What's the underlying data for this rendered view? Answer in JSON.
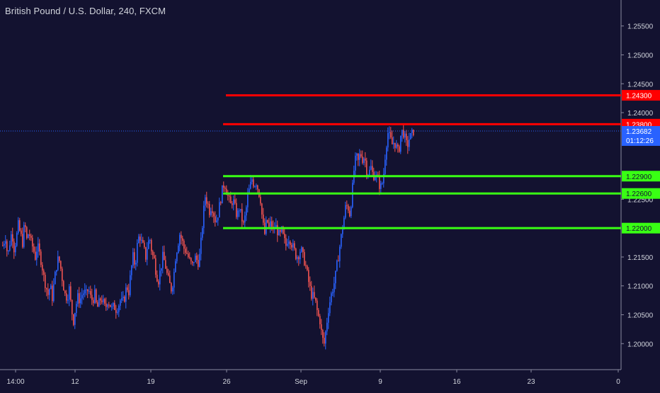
{
  "chart_data": {
    "type": "candlestick",
    "title": "British Pound / U.S. Dollar, 240, FXCM",
    "ylim": [
      1.1955,
      1.2595
    ],
    "y_ticks": [
      "1.25500",
      "1.25000",
      "1.24500",
      "1.24000",
      "1.22500",
      "1.21500",
      "1.21000",
      "1.20500",
      "1.20000"
    ],
    "x_ticks": [
      "14:00",
      "12",
      "19",
      "26",
      "Sep",
      "9",
      "16",
      "23",
      "0"
    ],
    "current_price": {
      "label": "1.23682",
      "value": 1.23682,
      "countdown": "01:12:26"
    },
    "horizontal_levels": [
      {
        "label": "1.24300",
        "value": 1.243,
        "color": "#ff0000",
        "role": "resistance"
      },
      {
        "label": "1.23800",
        "value": 1.238,
        "color": "#ff0000",
        "role": "resistance"
      },
      {
        "label": "1.22900",
        "value": 1.229,
        "color": "#39ff14",
        "role": "support"
      },
      {
        "label": "1.22600",
        "value": 1.226,
        "color": "#39ff14",
        "role": "support"
      },
      {
        "label": "1.22000",
        "value": 1.22,
        "color": "#39ff14",
        "role": "support"
      }
    ],
    "colors": {
      "background": "#131230",
      "up": "#2962ff",
      "down": "#ef5350",
      "axis_text": "#d1d4dc",
      "price_label": "#2962ff"
    },
    "close_path": [
      [
        0,
        1.217
      ],
      [
        4,
        1.2185
      ],
      [
        7,
        1.215
      ],
      [
        10,
        1.2175
      ],
      [
        13,
        1.2195
      ],
      [
        16,
        1.2165
      ],
      [
        19,
        1.218
      ],
      [
        22,
        1.2205
      ],
      [
        25,
        1.219
      ],
      [
        28,
        1.2175
      ],
      [
        31,
        1.221
      ],
      [
        34,
        1.218
      ],
      [
        37,
        1.2195
      ],
      [
        40,
        1.2175
      ],
      [
        43,
        1.2165
      ],
      [
        46,
        1.215
      ],
      [
        49,
        1.217
      ],
      [
        52,
        1.2155
      ],
      [
        55,
        1.214
      ],
      [
        58,
        1.2115
      ],
      [
        61,
        1.21
      ],
      [
        64,
        1.2085
      ],
      [
        67,
        1.21
      ],
      [
        70,
        1.208
      ],
      [
        73,
        1.211
      ],
      [
        76,
        1.2135
      ],
      [
        79,
        1.215
      ],
      [
        82,
        1.213
      ],
      [
        85,
        1.2105
      ],
      [
        88,
        1.2085
      ],
      [
        91,
        1.208
      ],
      [
        94,
        1.2095
      ],
      [
        97,
        1.206
      ],
      [
        100,
        1.204
      ],
      [
        103,
        1.2065
      ],
      [
        106,
        1.208
      ],
      [
        109,
        1.2075
      ],
      [
        112,
        1.2085
      ],
      [
        115,
        1.209
      ],
      [
        118,
        1.2085
      ],
      [
        121,
        1.2095
      ],
      [
        124,
        1.208
      ],
      [
        127,
        1.2075
      ],
      [
        130,
        1.2085
      ],
      [
        133,
        1.206
      ],
      [
        136,
        1.207
      ],
      [
        139,
        1.208
      ],
      [
        142,
        1.207
      ],
      [
        145,
        1.206
      ],
      [
        148,
        1.2075
      ],
      [
        151,
        1.207
      ],
      [
        154,
        1.206
      ],
      [
        157,
        1.2065
      ],
      [
        160,
        1.206
      ],
      [
        163,
        1.2065
      ],
      [
        166,
        1.2075
      ],
      [
        169,
        1.207
      ],
      [
        172,
        1.208
      ],
      [
        175,
        1.21
      ],
      [
        178,
        1.209
      ],
      [
        181,
        1.2125
      ],
      [
        184,
        1.215
      ],
      [
        187,
        1.2135
      ],
      [
        190,
        1.217
      ],
      [
        193,
        1.219
      ],
      [
        196,
        1.2175
      ],
      [
        199,
        1.2165
      ],
      [
        202,
        1.215
      ],
      [
        205,
        1.2175
      ],
      [
        208,
        1.218
      ],
      [
        211,
        1.2155
      ],
      [
        214,
        1.2145
      ],
      [
        217,
        1.212
      ],
      [
        220,
        1.211
      ],
      [
        223,
        1.213
      ],
      [
        226,
        1.215
      ],
      [
        229,
        1.214
      ],
      [
        232,
        1.212
      ],
      [
        235,
        1.2105
      ],
      [
        238,
        1.2095
      ],
      [
        241,
        1.211
      ],
      [
        244,
        1.215
      ],
      [
        247,
        1.217
      ],
      [
        250,
        1.219
      ],
      [
        253,
        1.218
      ],
      [
        256,
        1.2165
      ],
      [
        259,
        1.216
      ],
      [
        262,
        1.215
      ],
      [
        265,
        1.214
      ],
      [
        268,
        1.2135
      ],
      [
        271,
        1.215
      ],
      [
        274,
        1.2145
      ],
      [
        277,
        1.214
      ],
      [
        280,
        1.2175
      ],
      [
        283,
        1.222
      ],
      [
        286,
        1.2255
      ],
      [
        289,
        1.2245
      ],
      [
        292,
        1.223
      ],
      [
        295,
        1.224
      ],
      [
        298,
        1.2225
      ],
      [
        301,
        1.221
      ],
      [
        304,
        1.2225
      ],
      [
        307,
        1.2245
      ],
      [
        310,
        1.2265
      ],
      [
        313,
        1.228
      ],
      [
        316,
        1.2265
      ],
      [
        319,
        1.225
      ],
      [
        322,
        1.224
      ],
      [
        325,
        1.225
      ],
      [
        328,
        1.2235
      ],
      [
        331,
        1.222
      ],
      [
        334,
        1.2235
      ],
      [
        337,
        1.222
      ],
      [
        340,
        1.2205
      ],
      [
        343,
        1.2225
      ],
      [
        346,
        1.2255
      ],
      [
        349,
        1.227
      ],
      [
        352,
        1.2285
      ],
      [
        355,
        1.2275
      ],
      [
        358,
        1.228
      ],
      [
        361,
        1.2265
      ],
      [
        364,
        1.225
      ],
      [
        367,
        1.221
      ],
      [
        370,
        1.219
      ],
      [
        373,
        1.2215
      ],
      [
        376,
        1.22
      ],
      [
        379,
        1.221
      ],
      [
        382,
        1.2195
      ],
      [
        385,
        1.2205
      ],
      [
        388,
        1.2195
      ],
      [
        391,
        1.2185
      ],
      [
        394,
        1.2195
      ],
      [
        397,
        1.218
      ],
      [
        400,
        1.217
      ],
      [
        403,
        1.2185
      ],
      [
        406,
        1.218
      ],
      [
        409,
        1.217
      ],
      [
        412,
        1.216
      ],
      [
        415,
        1.215
      ],
      [
        418,
        1.2155
      ],
      [
        421,
        1.2165
      ],
      [
        424,
        1.215
      ],
      [
        427,
        1.214
      ],
      [
        430,
        1.212
      ],
      [
        433,
        1.21
      ],
      [
        436,
        1.2085
      ],
      [
        439,
        1.208
      ],
      [
        442,
        1.207
      ],
      [
        445,
        1.205
      ],
      [
        448,
        1.204
      ],
      [
        451,
        1.201
      ],
      [
        454,
        1.2
      ],
      [
        457,
        1.203
      ],
      [
        460,
        1.206
      ],
      [
        463,
        1.208
      ],
      [
        466,
        1.2095
      ],
      [
        469,
        1.211
      ],
      [
        472,
        1.2135
      ],
      [
        475,
        1.216
      ],
      [
        478,
        1.2185
      ],
      [
        481,
        1.221
      ],
      [
        484,
        1.2235
      ],
      [
        487,
        1.224
      ],
      [
        490,
        1.2225
      ],
      [
        493,
        1.2255
      ],
      [
        496,
        1.23
      ],
      [
        499,
        1.2325
      ],
      [
        502,
        1.2315
      ],
      [
        505,
        1.233
      ],
      [
        508,
        1.232
      ],
      [
        511,
        1.2325
      ],
      [
        514,
        1.23
      ],
      [
        517,
        1.2295
      ],
      [
        520,
        1.2305
      ],
      [
        523,
        1.229
      ],
      [
        526,
        1.2295
      ],
      [
        529,
        1.2285
      ],
      [
        532,
        1.2275
      ],
      [
        535,
        1.227
      ],
      [
        538,
        1.2295
      ],
      [
        541,
        1.234
      ],
      [
        544,
        1.2365
      ],
      [
        547,
        1.2355
      ],
      [
        550,
        1.2345
      ],
      [
        553,
        1.235
      ],
      [
        556,
        1.234
      ],
      [
        559,
        1.233
      ],
      [
        562,
        1.236
      ],
      [
        565,
        1.237
      ],
      [
        568,
        1.2355
      ],
      [
        571,
        1.234
      ],
      [
        574,
        1.2355
      ],
      [
        577,
        1.236
      ],
      [
        580,
        1.2368
      ]
    ]
  }
}
